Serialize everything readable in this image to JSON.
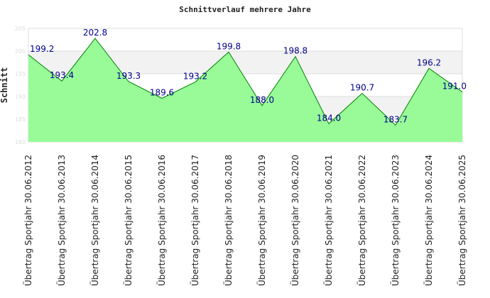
{
  "chart_data": {
    "type": "area",
    "title": "Schnittverlauf mehrere Jahre",
    "ylabel": "Schnitt",
    "xlabel": "",
    "ylim": [
      180,
      205
    ],
    "yticks": [
      "180",
      "185",
      "190",
      "195",
      "200",
      "205"
    ],
    "categories": [
      "Übertrag Sportjahr 30.06.2012",
      "Übertrag Sportjahr 30.06.2013",
      "Übertrag Sportjahr 30.06.2014",
      "Übertrag Sportjahr 30.06.2015",
      "Übertrag Sportjahr 30.06.2016",
      "Übertrag Sportjahr 30.06.2017",
      "Übertrag Sportjahr 30.06.2018",
      "Übertrag Sportjahr 30.06.2019",
      "Übertrag Sportjahr 30.06.2020",
      "Übertrag Sportjahr 30.06.2021",
      "Übertrag Sportjahr 30.06.2022",
      "Übertrag Sportjahr 30.06.2023",
      "Übertrag Sportjahr 30.06.2024",
      "Übertrag Sportjahr 30.06.2025"
    ],
    "values": [
      199.2,
      193.4,
      202.8,
      193.3,
      189.6,
      193.2,
      199.8,
      188.0,
      198.8,
      184.0,
      190.7,
      183.7,
      196.2,
      191.0
    ],
    "labels": [
      "199.2",
      "193.4",
      "202.8",
      "193.3",
      "189.6",
      "193.2",
      "199.8",
      "188.0",
      "198.8",
      "184.0",
      "190.7",
      "183.7",
      "196.2",
      "191.0"
    ],
    "colors": {
      "fill": "#98fb98",
      "line": "#008000",
      "label": "#00008b"
    },
    "grid": true,
    "legend": "none"
  }
}
